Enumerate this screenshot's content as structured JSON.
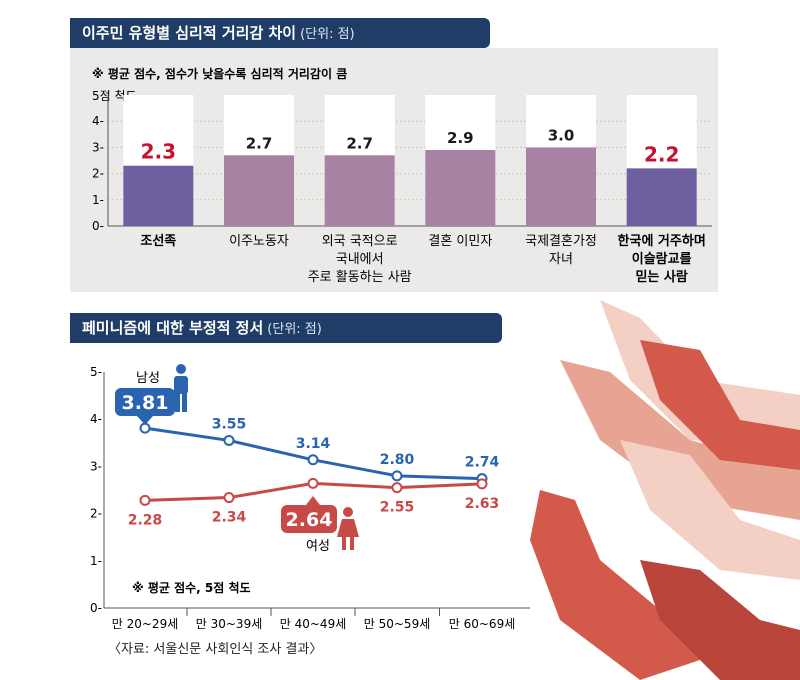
{
  "chart_data": [
    {
      "type": "bar",
      "title": "이주민 유형별 심리적 거리감 차이",
      "unit": "(단위: 점)",
      "note": "※ 평균 점수, 점수가 낮을수록 심리적 거리감이 큼",
      "ylabel": "5점 척도",
      "ylim": [
        0,
        5
      ],
      "yticks": [
        "1",
        "2",
        "3",
        "4"
      ],
      "categories": [
        [
          "조선족"
        ],
        [
          "이주노동자"
        ],
        [
          "외국 국적으로",
          "국내에서",
          "주로 활동하는 사람"
        ],
        [
          "결혼 이민자"
        ],
        [
          "국제결혼가정",
          "자녀"
        ],
        [
          "한국에 거주하며",
          "이슬람교를",
          "믿는 사람"
        ]
      ],
      "values": [
        2.3,
        2.7,
        2.7,
        2.9,
        3.0,
        2.2
      ],
      "labels": [
        "2.3",
        "2.7",
        "2.7",
        "2.9",
        "3.0",
        "2.2"
      ],
      "highlight": [
        true,
        false,
        false,
        false,
        false,
        true
      ],
      "colors": {
        "bar": "#a882a3",
        "bar_highlight": "#6e5fa0",
        "label_highlight": "#c8102e",
        "bar_bg": "#ffffff"
      }
    },
    {
      "type": "line",
      "title": "페미니즘에 대한 부정적 정서",
      "unit": "(단위: 점)",
      "note": "※ 평균 점수, 5점 척도",
      "ylim": [
        0,
        5
      ],
      "yticks": [
        "0",
        "1",
        "2",
        "3",
        "4",
        "5"
      ],
      "categories": [
        "만 20~29세",
        "만 30~39세",
        "만 40~49세",
        "만 50~59세",
        "만 60~69세"
      ],
      "series": [
        {
          "name": "남성",
          "values": [
            3.81,
            3.55,
            3.14,
            2.8,
            2.74
          ],
          "labels": [
            "3.81",
            "3.55",
            "3.14",
            "2.80",
            "2.74"
          ],
          "color": "#2a63b0"
        },
        {
          "name": "여성",
          "values": [
            2.28,
            2.34,
            2.64,
            2.55,
            2.63
          ],
          "labels": [
            "2.28",
            "2.34",
            "2.64",
            "2.55",
            "2.63"
          ],
          "color": "#c84a46"
        }
      ],
      "callouts": {
        "남성": 0,
        "여성": 2
      }
    }
  ],
  "footer": "〈자료: 서울신문 사회인식 조사 결과〉",
  "illustration": "hands-pushing-away-illustration"
}
